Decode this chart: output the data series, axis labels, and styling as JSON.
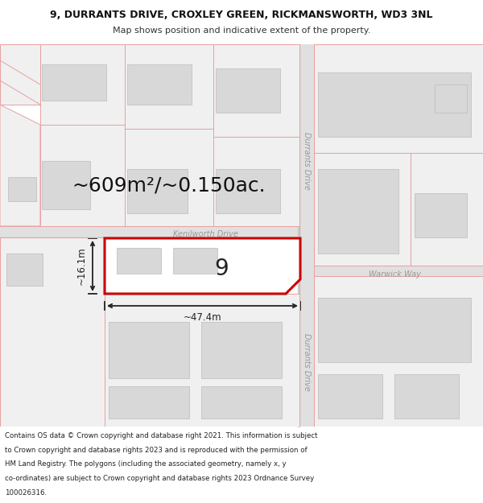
{
  "title_line1": "9, DURRANTS DRIVE, CROXLEY GREEN, RICKMANSWORTH, WD3 3NL",
  "title_line2": "Map shows position and indicative extent of the property.",
  "area_text": "~609m²/~0.150ac.",
  "width_text": "~47.4m",
  "height_text": "~16.1m",
  "plot_number": "9",
  "bg_color": "#ffffff",
  "highlight_color": "#cc0000",
  "plot_c": "#e8a0a0",
  "building_fill": "#d8d8d8",
  "road_fill": "#e8e8e8",
  "street_label_color": "#999999",
  "dim_color": "#222222",
  "title_fontsize": 9,
  "subtitle_fontsize": 8,
  "footer_fontsize": 6.2,
  "area_fontsize": 18,
  "plot_label_fontsize": 20,
  "dim_label_fontsize": 8.5,
  "footer_lines": [
    "Contains OS data © Crown copyright and database right 2021. This information is subject",
    "to Crown copyright and database rights 2023 and is reproduced with the permission of",
    "HM Land Registry. The polygons (including the associated geometry, namely x, y",
    "co-ordinates) are subject to Crown copyright and database rights 2023 Ordnance Survey",
    "100026316."
  ]
}
